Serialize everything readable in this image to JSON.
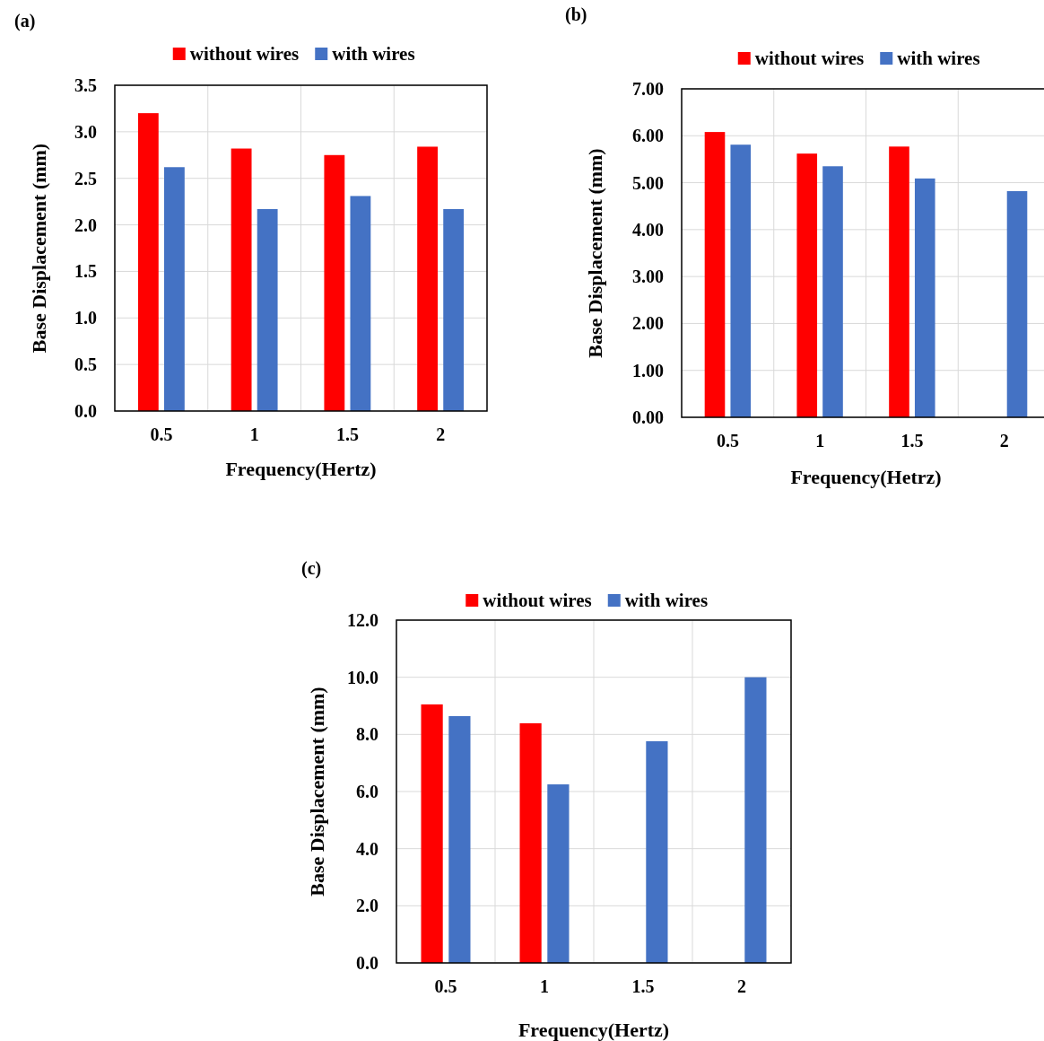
{
  "chart_data": [
    {
      "type": "bar",
      "title": "(a)",
      "xlabel": "Frequency(Hertz)",
      "ylabel": "Base Displacement (mm)",
      "categories": [
        "0.5",
        "1",
        "1.5",
        "2"
      ],
      "series": [
        {
          "name": "without wires",
          "color": "#ff0000",
          "values": [
            3.2,
            2.82,
            2.75,
            2.84
          ]
        },
        {
          "name": "with wires",
          "color": "#4472c4",
          "values": [
            2.62,
            2.17,
            2.31,
            2.17
          ]
        }
      ],
      "ylim": [
        0,
        3.5
      ],
      "yticks": [
        {
          "value": 0,
          "label": "0.0"
        },
        {
          "value": 0.5,
          "label": "0.5"
        },
        {
          "value": 1,
          "label": "1.0"
        },
        {
          "value": 1.5,
          "label": "1.5"
        },
        {
          "value": 2,
          "label": "2.0"
        },
        {
          "value": 2.5,
          "label": "2.5"
        },
        {
          "value": 3,
          "label": "3.0"
        },
        {
          "value": 3.5,
          "label": "3.5"
        }
      ],
      "grid": true,
      "legend": "top"
    },
    {
      "type": "bar",
      "title": "(b)",
      "xlabel": "Frequency(Hetrz)",
      "ylabel": "Base Displacement (mm)",
      "categories": [
        "0.5",
        "1",
        "1.5",
        "2"
      ],
      "series": [
        {
          "name": "without wires",
          "color": "#ff0000",
          "values": [
            6.08,
            5.62,
            5.77,
            null
          ]
        },
        {
          "name": "with wires",
          "color": "#4472c4",
          "values": [
            5.81,
            5.35,
            5.09,
            4.82
          ]
        }
      ],
      "ylim": [
        0,
        7
      ],
      "yticks": [
        {
          "value": 0,
          "label": "0.00"
        },
        {
          "value": 1,
          "label": "1.00"
        },
        {
          "value": 2,
          "label": "2.00"
        },
        {
          "value": 3,
          "label": "3.00"
        },
        {
          "value": 4,
          "label": "4.00"
        },
        {
          "value": 5,
          "label": "5.00"
        },
        {
          "value": 6,
          "label": "6.00"
        },
        {
          "value": 7,
          "label": "7.00"
        }
      ],
      "grid": true,
      "legend": "top"
    },
    {
      "type": "bar",
      "title": "(c)",
      "xlabel": "Frequency(Hertz)",
      "ylabel": "Base Displacement (mm)",
      "categories": [
        "0.5",
        "1",
        "1.5",
        "2"
      ],
      "series": [
        {
          "name": "without wires",
          "color": "#ff0000",
          "values": [
            9.05,
            8.39,
            null,
            null
          ]
        },
        {
          "name": "with wires",
          "color": "#4472c4",
          "values": [
            8.64,
            6.25,
            7.76,
            10.0
          ]
        }
      ],
      "ylim": [
        0,
        12
      ],
      "yticks": [
        {
          "value": 0,
          "label": "0.0"
        },
        {
          "value": 2,
          "label": "2.0"
        },
        {
          "value": 4,
          "label": "4.0"
        },
        {
          "value": 6,
          "label": "6.0"
        },
        {
          "value": 8,
          "label": "8.0"
        },
        {
          "value": 10,
          "label": "10.0"
        },
        {
          "value": 12,
          "label": "12.0"
        }
      ],
      "grid": true,
      "legend": "top"
    }
  ]
}
